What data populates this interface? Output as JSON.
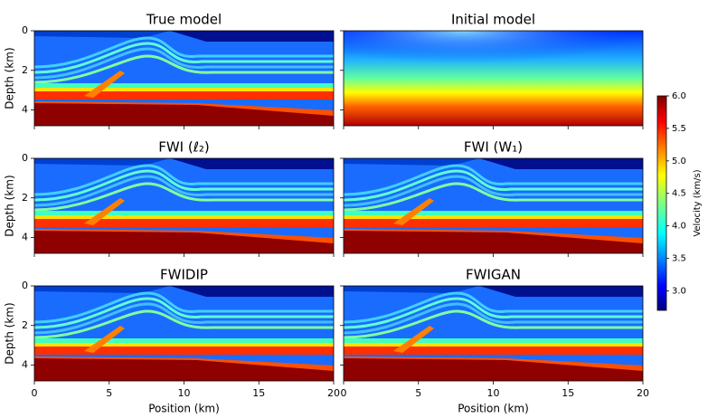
{
  "chart_data": [
    {
      "type": "heatmap",
      "title": "True model",
      "ylabel": "Depth (km)",
      "xlim": [
        0,
        20
      ],
      "xticks": [
        0,
        5,
        10,
        15,
        20
      ],
      "ylim": [
        4.8,
        0
      ],
      "yticks": [
        0,
        2,
        4
      ]
    },
    {
      "type": "heatmap",
      "title": "Initial model",
      "xlim": [
        0,
        20
      ],
      "xticks": [
        0,
        5,
        10,
        15,
        20
      ],
      "ylim": [
        4.8,
        0
      ],
      "yticks": [
        0,
        2,
        4
      ]
    },
    {
      "type": "heatmap",
      "title": "FWI (ℓ₂)",
      "ylabel": "Depth (km)",
      "xlim": [
        0,
        20
      ],
      "xticks": [
        0,
        5,
        10,
        15,
        20
      ],
      "ylim": [
        4.8,
        0
      ],
      "yticks": [
        0,
        2,
        4
      ]
    },
    {
      "type": "heatmap",
      "title": "FWI (W₁)",
      "xlim": [
        0,
        20
      ],
      "xticks": [
        0,
        5,
        10,
        15,
        20
      ],
      "ylim": [
        4.8,
        0
      ],
      "yticks": [
        0,
        2,
        4
      ]
    },
    {
      "type": "heatmap",
      "title": "FWIDIP",
      "ylabel": "Depth (km)",
      "xlabel": "Position (km)",
      "xlim": [
        0,
        20
      ],
      "xticks": [
        0,
        5,
        10,
        15,
        20
      ],
      "ylim": [
        4.8,
        0
      ],
      "yticks": [
        0,
        2,
        4
      ]
    },
    {
      "type": "heatmap",
      "title": "FWIGAN",
      "xlabel": "Position (km)",
      "xlim": [
        0,
        20
      ],
      "xticks": [
        0,
        5,
        10,
        15,
        20
      ],
      "ylim": [
        4.8,
        0
      ],
      "yticks": [
        0,
        2,
        4
      ]
    }
  ],
  "colorbar": {
    "label": "Velocity (km/s)",
    "lim": [
      2.7,
      6.0
    ],
    "ticks": [
      {
        "value": 3,
        "label": "3.0"
      },
      {
        "value": 3.5,
        "label": "3.5"
      },
      {
        "value": 4,
        "label": "4.0"
      },
      {
        "value": 4.5,
        "label": "4.5"
      },
      {
        "value": 5,
        "label": "5.0"
      },
      {
        "value": 5.5,
        "label": "5.5"
      },
      {
        "value": 6,
        "label": "6.0"
      }
    ]
  }
}
